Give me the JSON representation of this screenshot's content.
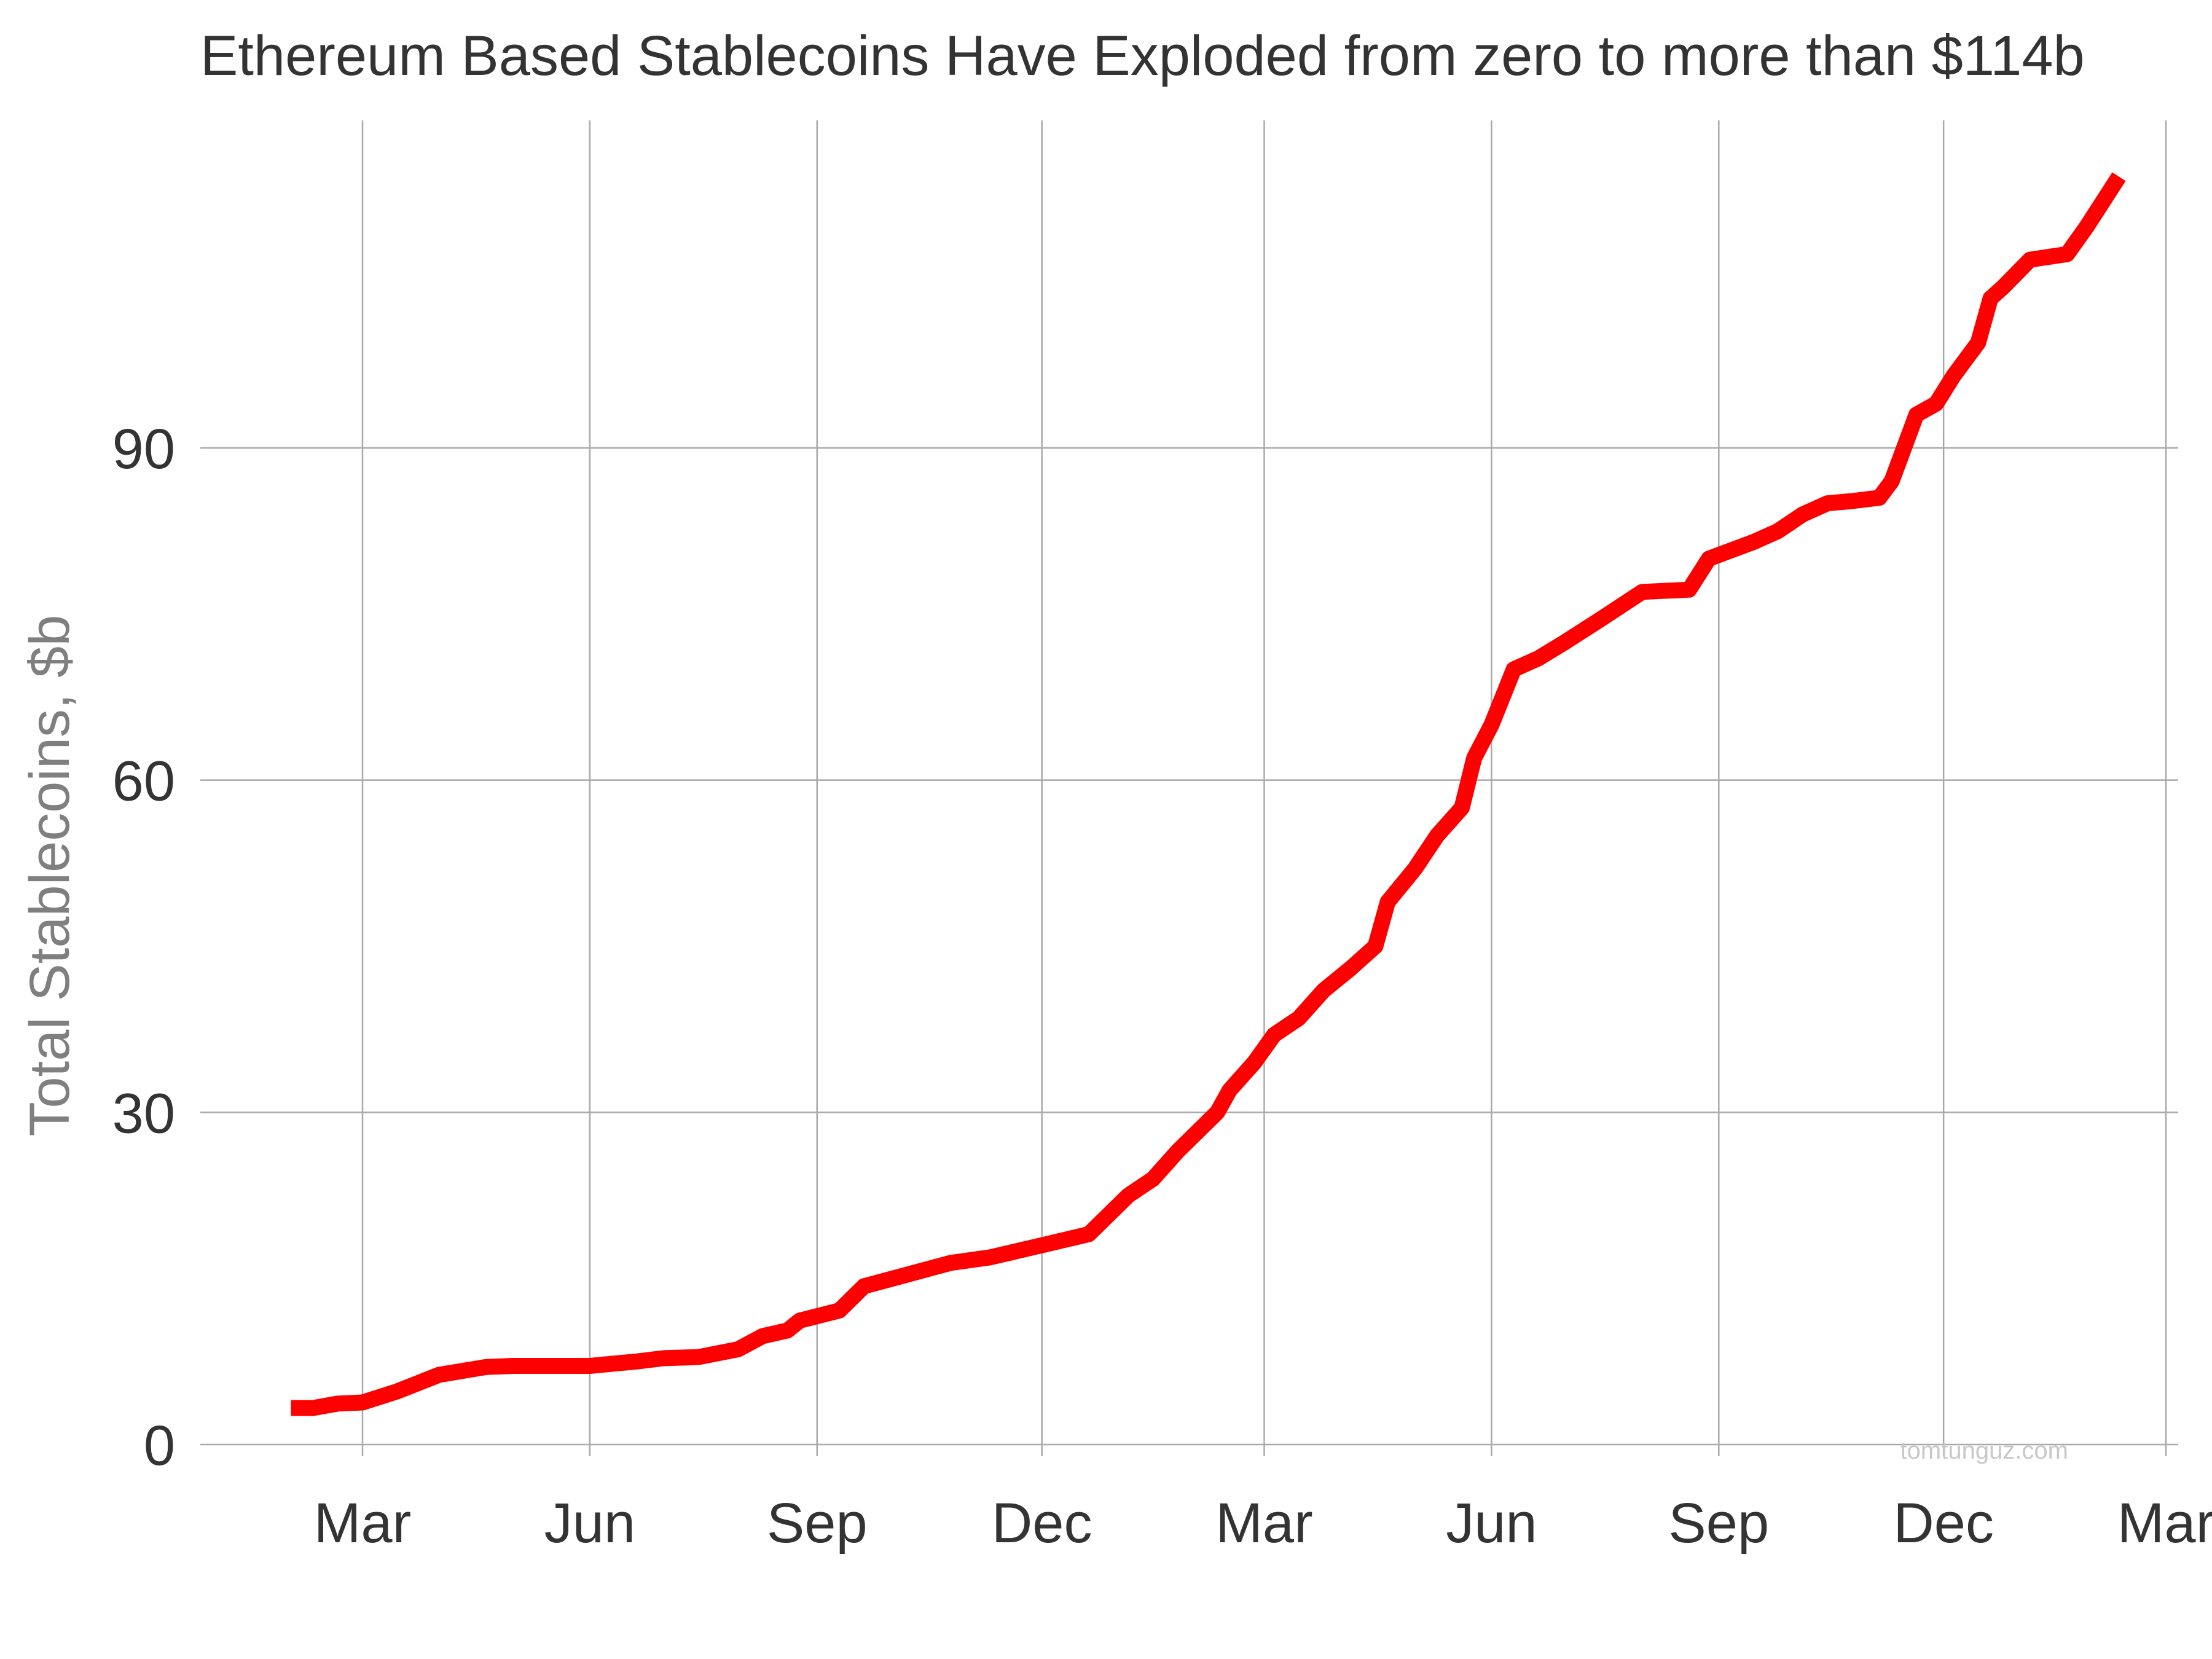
{
  "chart_data": {
    "type": "line",
    "title": "Ethereum Based Stablecoins Have Exploded from zero to more than $114b",
    "xlabel": "",
    "ylabel": "Total Stablecoins, $b",
    "x_ticks": [
      {
        "label": "Mar",
        "date": "2020-03-01"
      },
      {
        "label": "Jun",
        "date": "2020-06-01"
      },
      {
        "label": "Sep",
        "date": "2020-09-01"
      },
      {
        "label": "Dec",
        "date": "2020-12-01"
      },
      {
        "label": "Mar",
        "date": "2021-03-01"
      },
      {
        "label": "Jun",
        "date": "2021-06-01"
      },
      {
        "label": "Sep",
        "date": "2021-09-01"
      },
      {
        "label": "Dec",
        "date": "2021-12-01"
      },
      {
        "label": "Mar",
        "date": "2022-03-01"
      }
    ],
    "xlim": [
      "2020-01-09",
      "2022-03-01"
    ],
    "y_ticks": [
      0,
      30,
      60,
      90
    ],
    "ylim": [
      -3.3,
      119
    ],
    "grid": true,
    "legend": "none",
    "watermark": "tomtunguz.com",
    "series": [
      {
        "color": "#ff0000",
        "x": [
          "2020-02-01",
          "2020-02-10",
          "2020-02-20",
          "2020-03-01",
          "2020-03-15",
          "2020-04-01",
          "2020-04-20",
          "2020-05-01",
          "2020-05-15",
          "2020-06-01",
          "2020-06-20",
          "2020-07-01",
          "2020-07-15",
          "2020-07-31",
          "2020-08-10",
          "2020-08-20",
          "2020-08-25",
          "2020-09-10",
          "2020-09-20",
          "2020-09-25",
          "2020-10-10",
          "2020-10-25",
          "2020-11-10",
          "2020-12-01",
          "2020-12-20",
          "2021-01-05",
          "2021-01-15",
          "2021-01-25",
          "2021-02-10",
          "2021-02-15",
          "2021-02-25",
          "2021-03-05",
          "2021-03-15",
          "2021-03-25",
          "2021-04-05",
          "2021-04-15",
          "2021-04-20",
          "2021-05-01",
          "2021-05-10",
          "2021-05-20",
          "2021-05-25",
          "2021-06-01",
          "2021-06-10",
          "2021-06-20",
          "2021-07-01",
          "2021-07-15",
          "2021-08-01",
          "2021-08-20",
          "2021-08-28",
          "2021-09-15",
          "2021-09-25",
          "2021-10-05",
          "2021-10-15",
          "2021-10-25",
          "2021-11-05",
          "2021-11-10",
          "2021-11-20",
          "2021-11-28",
          "2021-12-05",
          "2021-12-15",
          "2021-12-20",
          "2021-12-25",
          "2022-01-05",
          "2022-01-20",
          "2022-01-28",
          "2022-02-10"
        ],
        "values": [
          3.3,
          3.3,
          3.7,
          3.8,
          4.8,
          6.3,
          7.0,
          7.1,
          7.1,
          7.1,
          7.5,
          7.8,
          7.9,
          8.6,
          9.8,
          10.3,
          11.2,
          12.1,
          14.3,
          14.6,
          15.5,
          16.4,
          16.9,
          18.0,
          19.0,
          22.5,
          24.0,
          26.5,
          30.0,
          32.0,
          34.5,
          37.0,
          38.5,
          41.0,
          43.0,
          45.0,
          49.0,
          52.0,
          55.0,
          57.5,
          62.0,
          65.0,
          70.0,
          71.0,
          72.5,
          74.5,
          77.0,
          77.2,
          80.0,
          81.5,
          82.5,
          84.0,
          85.0,
          85.2,
          85.5,
          87.0,
          93.0,
          94.0,
          96.5,
          99.5,
          103.5,
          104.5,
          107.0,
          107.5,
          110.0,
          114.5
        ]
      }
    ]
  }
}
